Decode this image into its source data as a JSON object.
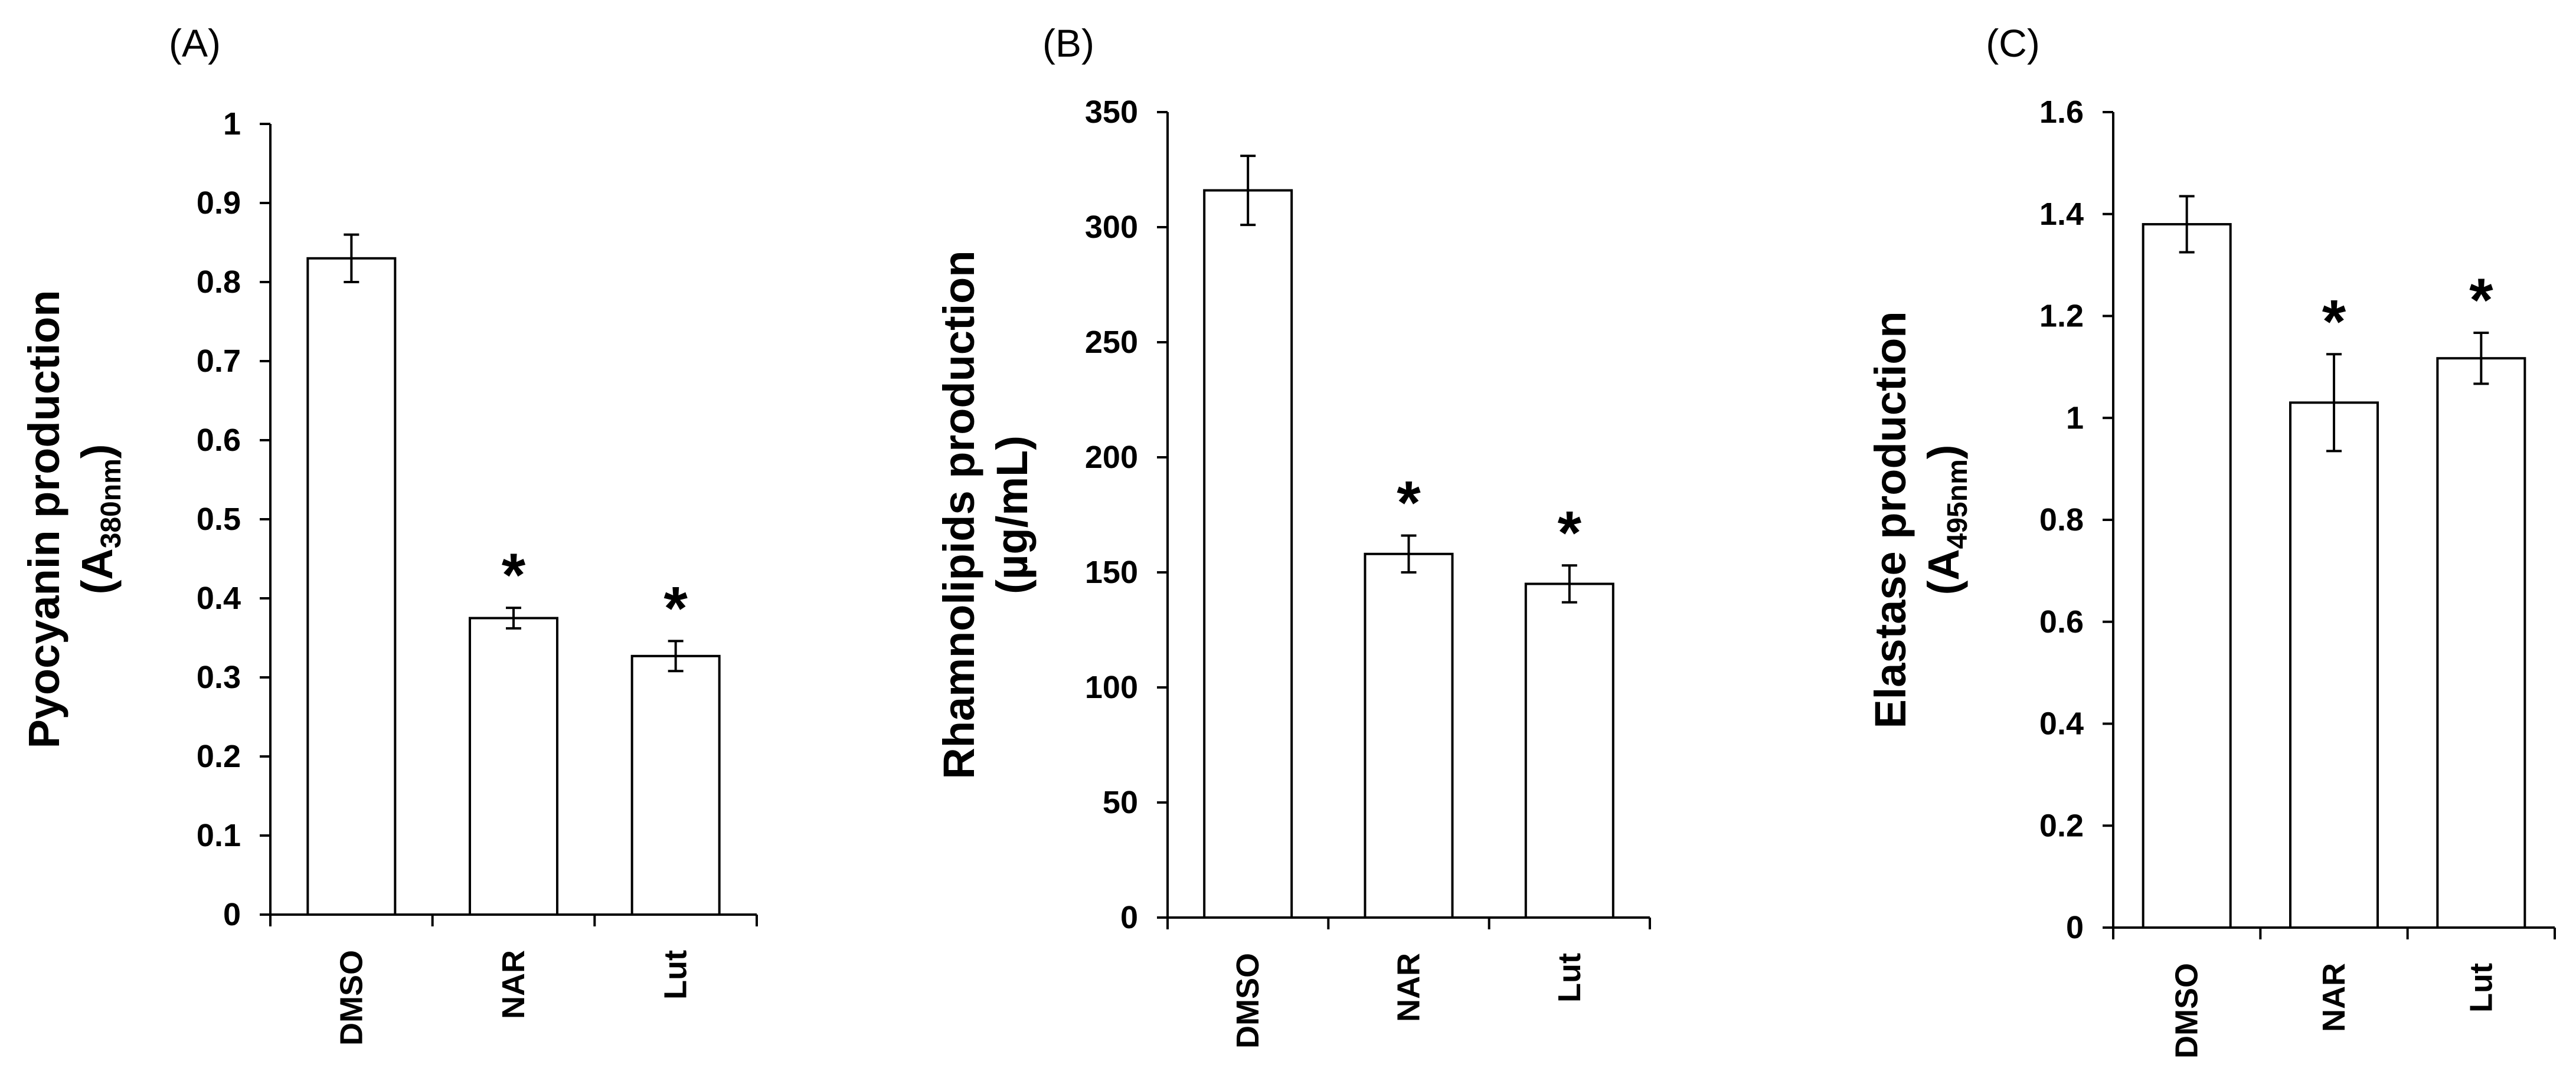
{
  "chart_data": [
    {
      "type": "bar",
      "panel_label": "(A)",
      "ylabel": {
        "line1": "Pyocyanin production",
        "line2_main": "(A",
        "line2_sub": "380nm",
        "line2_end": ")"
      },
      "ylim": [
        0,
        1
      ],
      "yticks": [
        "0",
        "0.1",
        "0.2",
        "0.3",
        "0.4",
        "0.5",
        "0.6",
        "0.7",
        "0.8",
        "0.9",
        "1"
      ],
      "categories": [
        "DMSO",
        "NAR",
        "Lut"
      ],
      "values": [
        0.83,
        0.375,
        0.327
      ],
      "errors": [
        0.03,
        0.013,
        0.019
      ],
      "significance": [
        "",
        "*",
        "*"
      ],
      "grid": false,
      "legend": "none",
      "bar_fill": "#ffffff",
      "bar_stroke": "#000000"
    },
    {
      "type": "bar",
      "panel_label": "(B)",
      "ylabel": {
        "line1": "Rhamnolipids production",
        "line2_main": "(µg/mL)",
        "line2_sub": "",
        "line2_end": ""
      },
      "ylim": [
        0,
        350
      ],
      "yticks": [
        "0",
        "50",
        "100",
        "150",
        "200",
        "250",
        "300",
        "350"
      ],
      "categories": [
        "DMSO",
        "NAR",
        "Lut"
      ],
      "values": [
        316,
        158,
        145
      ],
      "errors": [
        15,
        8,
        8
      ],
      "significance": [
        "",
        "*",
        "*"
      ],
      "grid": false,
      "legend": "none",
      "bar_fill": "#ffffff",
      "bar_stroke": "#000000"
    },
    {
      "type": "bar",
      "panel_label": "(C)",
      "ylabel": {
        "line1": "Elastase production",
        "line2_main": "(A",
        "line2_sub": "495nm",
        "line2_end": ")"
      },
      "ylim": [
        0,
        1.6
      ],
      "yticks": [
        "0",
        "0.2",
        "0.4",
        "0.6",
        "0.8",
        "1",
        "1.2",
        "1.4",
        "1.6"
      ],
      "categories": [
        "DMSO",
        "NAR",
        "Lut"
      ],
      "values": [
        1.38,
        1.03,
        1.117
      ],
      "errors": [
        0.055,
        0.095,
        0.05
      ],
      "significance": [
        "",
        "*",
        "*"
      ],
      "grid": false,
      "legend": "none",
      "bar_fill": "#ffffff",
      "bar_stroke": "#000000"
    }
  ]
}
